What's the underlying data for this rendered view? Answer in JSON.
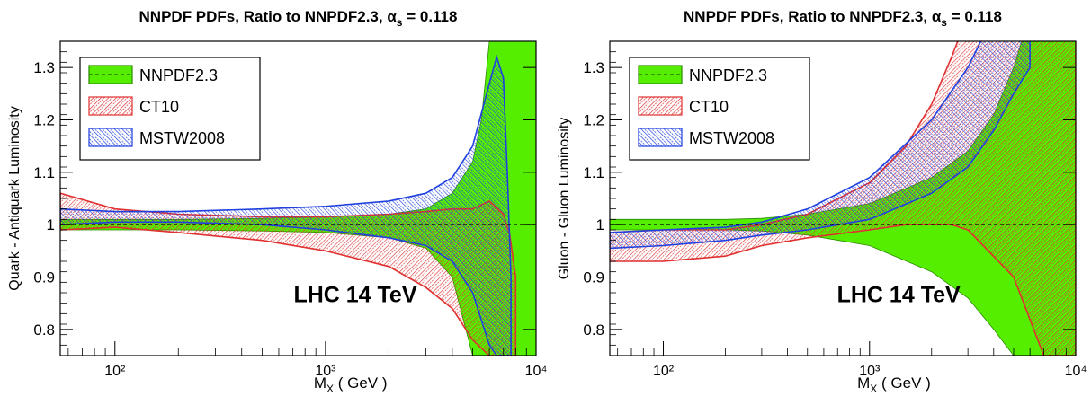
{
  "chart_data": [
    {
      "type": "area",
      "title": "NNPDF PDFs, Ratio to NNPDF2.3, αs = 0.118",
      "title_parts": {
        "main": "NNPDF PDFs, Ratio to NNPDF2.3, α",
        "sub": "s",
        "tail": " = 0.118"
      },
      "xlabel": "M",
      "xlabel_sub": "X",
      "xlabel_unit": " ( GeV )",
      "ylabel": "Quark - Antiquark Luminosity",
      "annotation": "LHC 14 TeV",
      "xscale": "log",
      "xlim": [
        55,
        10000
      ],
      "ylim": [
        0.75,
        1.35
      ],
      "x_ticks": [
        {
          "value": 100,
          "label": "10²"
        },
        {
          "value": 1000,
          "label": "10³"
        },
        {
          "value": 10000,
          "label": "10⁴"
        }
      ],
      "y_ticks": [
        {
          "value": 0.8,
          "label": "0.8"
        },
        {
          "value": 0.9,
          "label": "0.9"
        },
        {
          "value": 1.0,
          "label": "1"
        },
        {
          "value": 1.1,
          "label": "1.1"
        },
        {
          "value": 1.2,
          "label": "1.2"
        },
        {
          "value": 1.3,
          "label": "1.3"
        }
      ],
      "legend_position": "top-left",
      "series": [
        {
          "name": "NNPDF2.3",
          "color": "#55ee00",
          "style": "solid",
          "x": [
            55,
            100,
            200,
            500,
            1000,
            2000,
            3000,
            4000,
            5000,
            5500,
            6000,
            6500,
            7000,
            8000,
            10000
          ],
          "upper": [
            1.01,
            1.01,
            1.01,
            1.012,
            1.015,
            1.02,
            1.03,
            1.06,
            1.12,
            1.2,
            1.35,
            1.4,
            1.4,
            1.4,
            1.4
          ],
          "lower": [
            0.99,
            0.99,
            0.99,
            0.988,
            0.985,
            0.975,
            0.955,
            0.9,
            0.75,
            0.75,
            0.75,
            0.75,
            0.75,
            0.75,
            0.75
          ],
          "central": [
            1,
            1,
            1,
            1,
            1,
            1,
            1,
            1,
            1,
            1,
            1,
            1,
            1,
            1,
            1
          ]
        },
        {
          "name": "CT10",
          "color": "#e03030",
          "style": "hatch",
          "x": [
            55,
            100,
            200,
            500,
            1000,
            2000,
            3000,
            4000,
            5000,
            6000,
            7000,
            7500,
            8000
          ],
          "upper": [
            1.06,
            1.03,
            1.02,
            1.015,
            1.015,
            1.02,
            1.025,
            1.03,
            1.03,
            1.045,
            1.02,
            0.98,
            0.9
          ],
          "lower": [
            0.99,
            0.995,
            0.985,
            0.97,
            0.95,
            0.92,
            0.88,
            0.84,
            0.78,
            0.75,
            0.75,
            0.75,
            0.75
          ]
        },
        {
          "name": "MSTW2008",
          "color": "#2040e0",
          "style": "hatch",
          "x": [
            55,
            100,
            200,
            500,
            1000,
            2000,
            3000,
            4000,
            5000,
            6000,
            6500,
            7000,
            7300,
            7600
          ],
          "upper": [
            1.03,
            1.025,
            1.025,
            1.03,
            1.035,
            1.045,
            1.06,
            1.09,
            1.15,
            1.27,
            1.32,
            1.28,
            1.1,
            0.9
          ],
          "lower": [
            1.0,
            1.005,
            1.005,
            1.0,
            0.99,
            0.975,
            0.96,
            0.93,
            0.87,
            0.77,
            0.75,
            0.75,
            0.75,
            0.75
          ]
        }
      ]
    },
    {
      "type": "area",
      "title": "NNPDF PDFs, Ratio to NNPDF2.3, αs = 0.118",
      "title_parts": {
        "main": "NNPDF PDFs, Ratio to NNPDF2.3, α",
        "sub": "s",
        "tail": " = 0.118"
      },
      "xlabel": "M",
      "xlabel_sub": "X",
      "xlabel_unit": " ( GeV )",
      "ylabel": "Gluon - Gluon Luminosity",
      "annotation": "LHC 14 TeV",
      "xscale": "log",
      "xlim": [
        55,
        10000
      ],
      "ylim": [
        0.75,
        1.35
      ],
      "x_ticks": [
        {
          "value": 100,
          "label": "10²"
        },
        {
          "value": 1000,
          "label": "10³"
        },
        {
          "value": 10000,
          "label": "10⁴"
        }
      ],
      "y_ticks": [
        {
          "value": 0.8,
          "label": "0.8"
        },
        {
          "value": 0.9,
          "label": "0.9"
        },
        {
          "value": 1.0,
          "label": "1"
        },
        {
          "value": 1.1,
          "label": "1.1"
        },
        {
          "value": 1.2,
          "label": "1.2"
        },
        {
          "value": 1.3,
          "label": "1.3"
        }
      ],
      "legend_position": "top-left",
      "series": [
        {
          "name": "NNPDF2.3",
          "color": "#55ee00",
          "style": "solid",
          "x": [
            55,
            100,
            200,
            300,
            500,
            1000,
            2000,
            3000,
            4000,
            5000,
            6000,
            7000,
            8000,
            10000
          ],
          "upper": [
            1.01,
            1.01,
            1.01,
            1.012,
            1.02,
            1.04,
            1.09,
            1.14,
            1.21,
            1.3,
            1.4,
            1.4,
            1.4,
            1.4
          ],
          "lower": [
            0.99,
            0.99,
            0.99,
            0.988,
            0.98,
            0.96,
            0.91,
            0.86,
            0.8,
            0.75,
            0.75,
            0.75,
            0.75,
            0.75
          ],
          "central": [
            1,
            1,
            1,
            1,
            1,
            1,
            1,
            1,
            1,
            1,
            1,
            1,
            1,
            1
          ]
        },
        {
          "name": "CT10",
          "color": "#e03030",
          "style": "hatch",
          "x": [
            55,
            100,
            200,
            300,
            500,
            1000,
            1500,
            2000,
            2500,
            3000,
            5000,
            7000,
            10000
          ],
          "upper": [
            0.985,
            0.99,
            0.99,
            1.0,
            1.02,
            1.08,
            1.15,
            1.23,
            1.32,
            1.4,
            1.4,
            1.4,
            1.4
          ],
          "lower": [
            0.93,
            0.93,
            0.94,
            0.96,
            0.975,
            0.99,
            1.0,
            1.0,
            1.0,
            0.99,
            0.9,
            0.75,
            0.75
          ]
        },
        {
          "name": "MSTW2008",
          "color": "#2040e0",
          "style": "hatch",
          "x": [
            55,
            100,
            200,
            300,
            500,
            1000,
            2000,
            3000,
            4000,
            5000,
            6000
          ],
          "upper": [
            0.985,
            0.99,
            0.995,
            1.005,
            1.03,
            1.09,
            1.2,
            1.3,
            1.4,
            1.4,
            1.4
          ],
          "lower": [
            0.955,
            0.96,
            0.97,
            0.98,
            0.99,
            1.01,
            1.06,
            1.11,
            1.18,
            1.25,
            1.3
          ]
        }
      ]
    }
  ]
}
